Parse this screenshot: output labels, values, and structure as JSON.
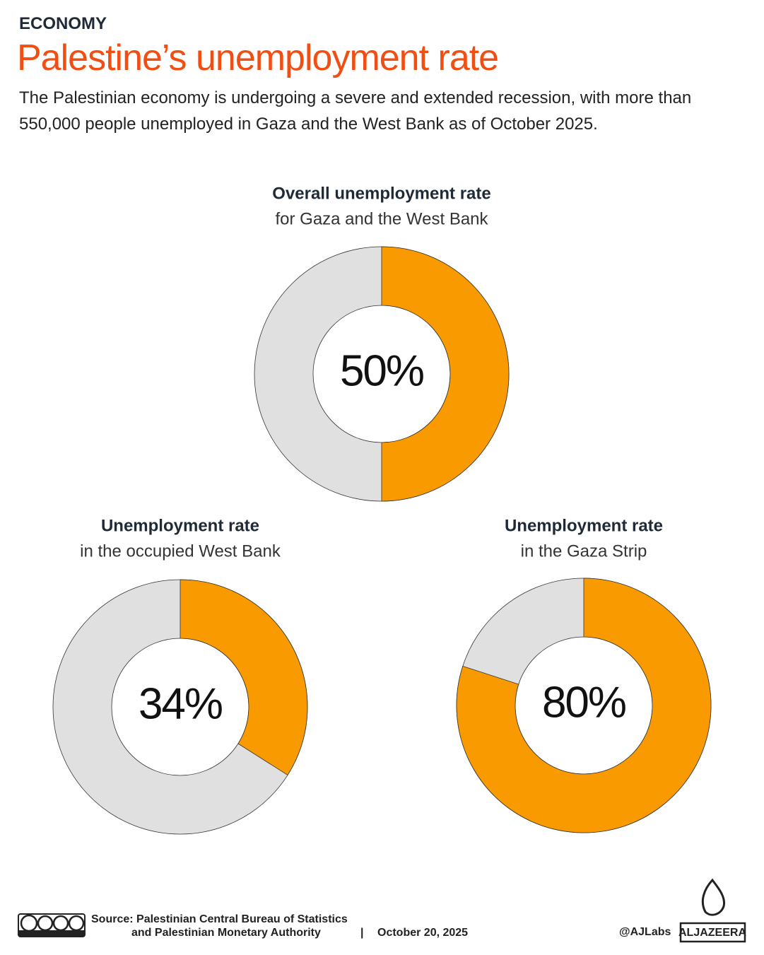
{
  "header": {
    "kicker": "ECONOMY",
    "title": "Palestine’s unemployment rate",
    "subtitle": "The Palestinian economy is undergoing a severe and extended recession, with more than 550,000 people unemployed in Gaza and the West Bank as of October 2025."
  },
  "chart_data": [
    {
      "type": "donut",
      "title": "Overall unemployment rate",
      "subtitle": "for Gaza and the West Bank",
      "values": [
        50
      ],
      "value_labels": [
        "50%"
      ],
      "ylim": [
        0,
        100
      ],
      "color": "#f89a00",
      "track_color": "#e0e0e0"
    },
    {
      "type": "donut",
      "title": "Unemployment rate",
      "subtitle": "in the occupied West Bank",
      "values": [
        34
      ],
      "value_labels": [
        "34%"
      ],
      "ylim": [
        0,
        100
      ],
      "color": "#f89a00",
      "track_color": "#e0e0e0"
    },
    {
      "type": "donut",
      "title": "Unemployment rate",
      "subtitle": "in the Gaza Strip",
      "values": [
        80
      ],
      "value_labels": [
        "80%"
      ],
      "ylim": [
        0,
        100
      ],
      "color": "#f89a00",
      "track_color": "#e0e0e0"
    }
  ],
  "footer": {
    "source_line1": "Source: Palestinian Central Bureau of Statistics",
    "source_line2": "and Palestinian Monetary Authority",
    "separator": "|",
    "date": "October 20, 2025",
    "handle": "@AJLabs",
    "brand": "ALJAZEERA"
  }
}
